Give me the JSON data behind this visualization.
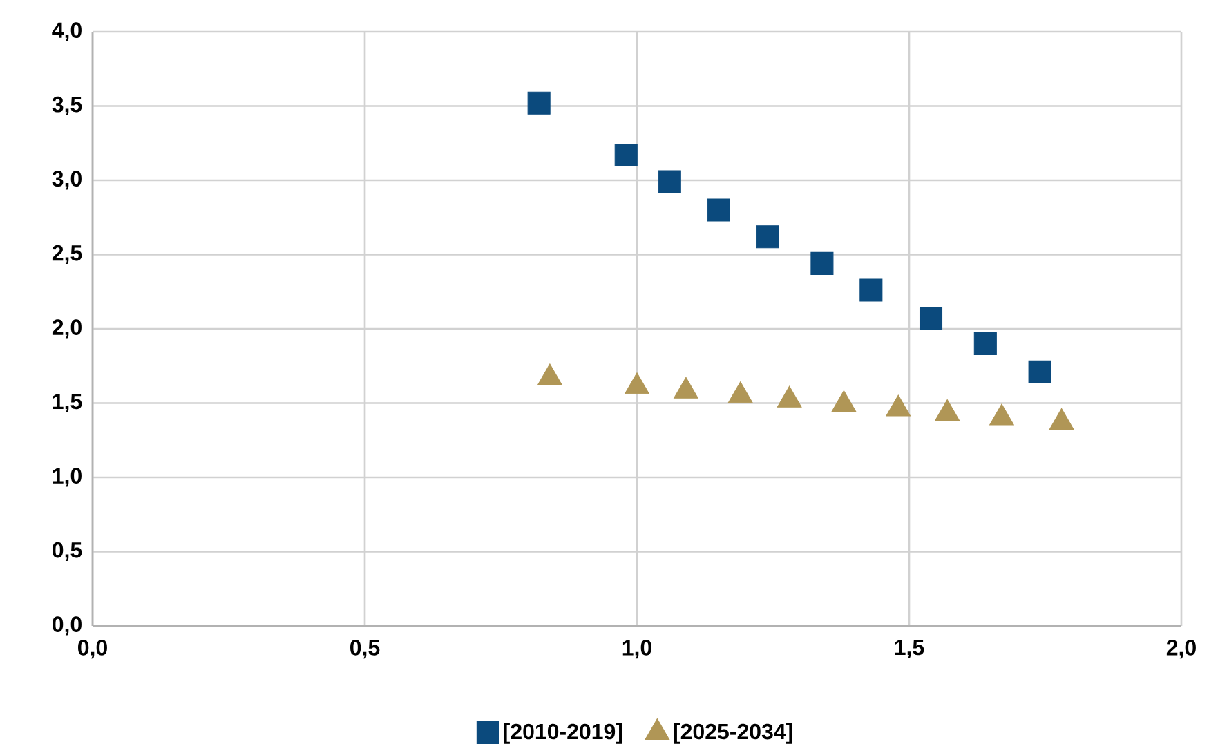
{
  "chart_data": {
    "type": "scatter",
    "grid": true,
    "legend": "bottom",
    "xlim": [
      0,
      2
    ],
    "ylim": [
      0,
      4
    ],
    "xticks": [
      {
        "value": 0,
        "label": "0,0"
      },
      {
        "value": 0.5,
        "label": "0,5"
      },
      {
        "value": 1,
        "label": "1,0"
      },
      {
        "value": 1.5,
        "label": "1,5"
      },
      {
        "value": 2,
        "label": "2,0"
      }
    ],
    "yticks": [
      {
        "value": 0,
        "label": "0,0"
      },
      {
        "value": 0.5,
        "label": "0,5"
      },
      {
        "value": 1,
        "label": "1,0"
      },
      {
        "value": 1.5,
        "label": "1,5"
      },
      {
        "value": 2,
        "label": "2,0"
      },
      {
        "value": 2.5,
        "label": "2,5"
      },
      {
        "value": 3,
        "label": "3,0"
      },
      {
        "value": 3.5,
        "label": "3,5"
      },
      {
        "value": 4,
        "label": "4,0"
      }
    ],
    "series": [
      {
        "name": "[2010-2019]",
        "color": "#0b4a7d",
        "marker": "square",
        "x": [
          0.82,
          0.98,
          1.06,
          1.15,
          1.24,
          1.34,
          1.43,
          1.54,
          1.64,
          1.74
        ],
        "values": [
          3.52,
          3.17,
          2.99,
          2.8,
          2.62,
          2.44,
          2.26,
          2.07,
          1.9,
          1.71
        ]
      },
      {
        "name": "[2025-2034]",
        "color": "#b09656",
        "marker": "triangle",
        "x": [
          0.84,
          1.0,
          1.09,
          1.19,
          1.28,
          1.38,
          1.48,
          1.57,
          1.67,
          1.78
        ],
        "values": [
          1.67,
          1.61,
          1.58,
          1.55,
          1.52,
          1.49,
          1.46,
          1.43,
          1.4,
          1.37
        ]
      }
    ]
  }
}
